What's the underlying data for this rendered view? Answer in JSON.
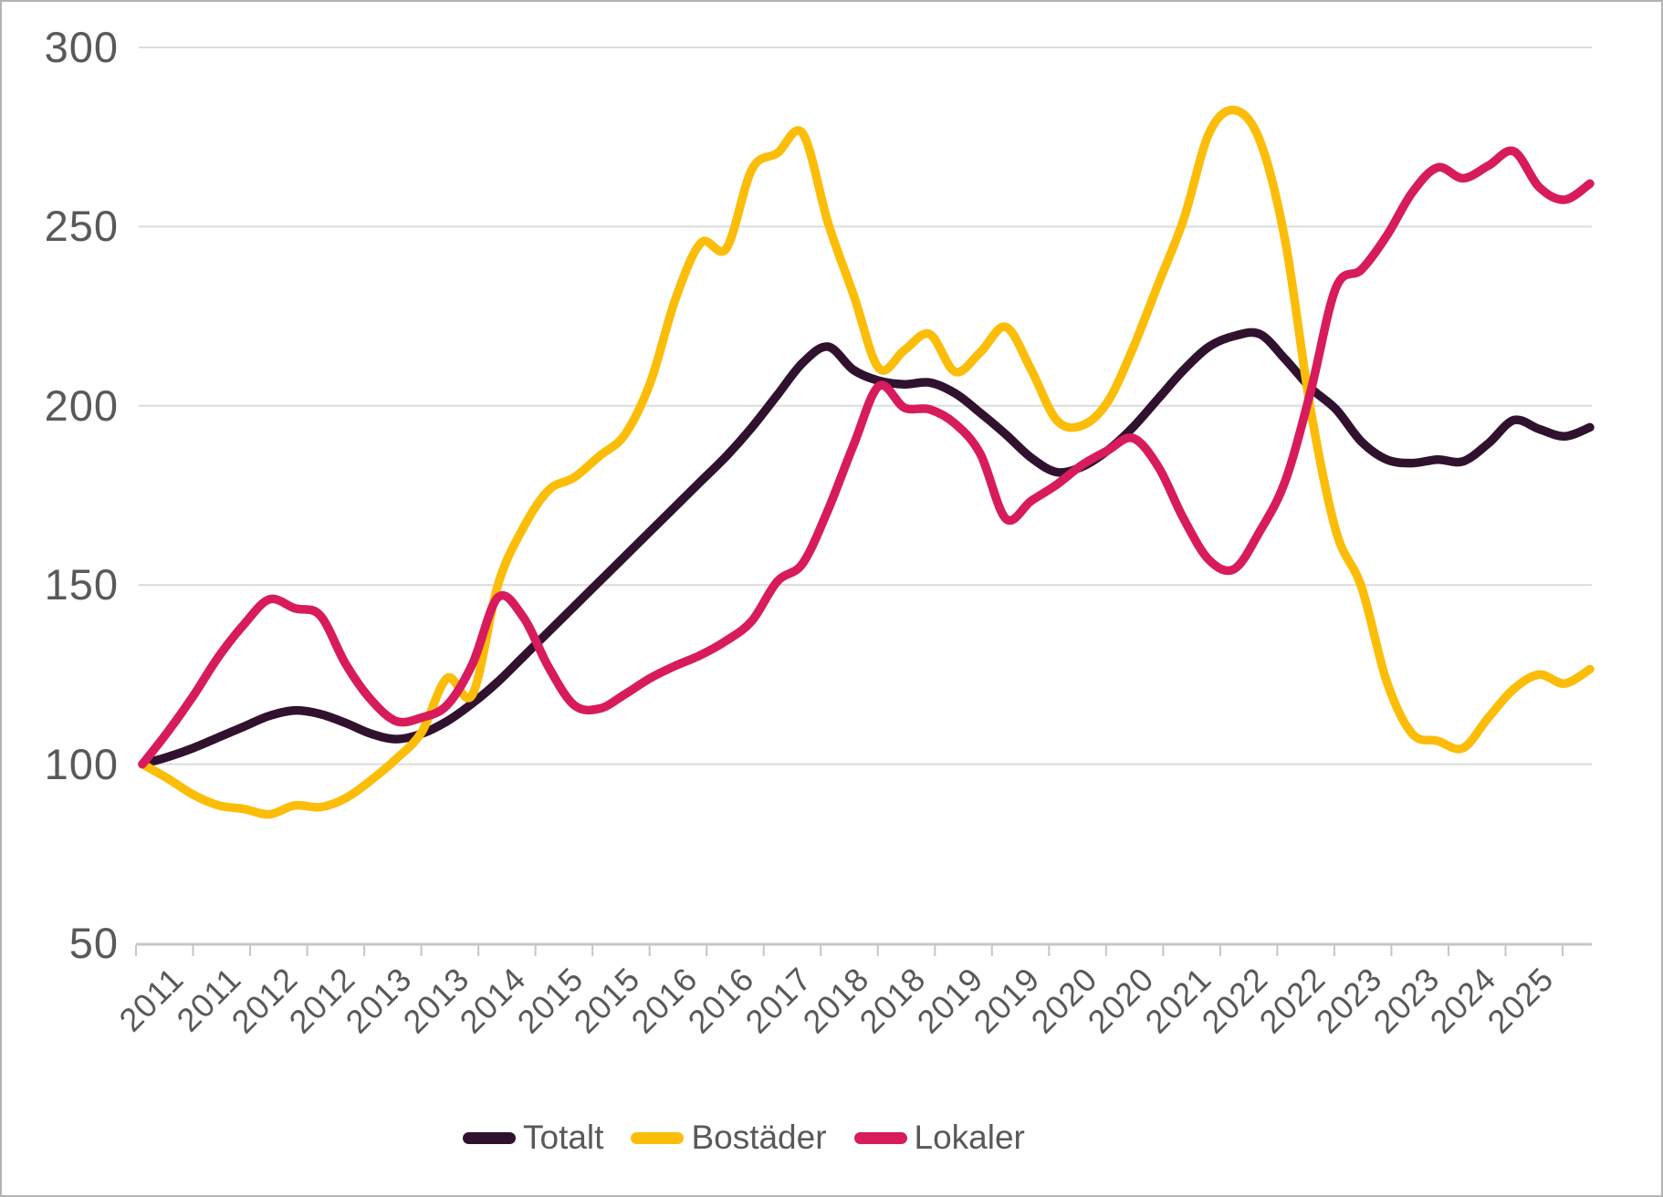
{
  "chart_data": {
    "type": "line",
    "title": "",
    "grid": "horizontal",
    "legend_position": "bottom",
    "y_axis": {
      "min": 50,
      "max": 300,
      "ticks": [
        300,
        250,
        200,
        150,
        100,
        50
      ]
    },
    "x_axis": {
      "tick_labels": [
        "2011",
        "2011",
        "2012",
        "2012",
        "2013",
        "2013",
        "2014",
        "2015",
        "2015",
        "2016",
        "2016",
        "2017",
        "2018",
        "2018",
        "2019",
        "2019",
        "2020",
        "2020",
        "2021",
        "2022",
        "2022",
        "2023",
        "2023",
        "2024",
        "2025"
      ]
    },
    "x": [
      "2011Q1",
      "2011Q2",
      "2011Q3",
      "2011Q4",
      "2012Q1",
      "2012Q2",
      "2012Q3",
      "2012Q4",
      "2013Q1",
      "2013Q2",
      "2013Q3",
      "2013Q4",
      "2014Q1",
      "2014Q2",
      "2014Q3",
      "2014Q4",
      "2015Q1",
      "2015Q2",
      "2015Q3",
      "2015Q4",
      "2016Q1",
      "2016Q2",
      "2016Q3",
      "2016Q4",
      "2017Q1",
      "2017Q2",
      "2017Q3",
      "2017Q4",
      "2018Q1",
      "2018Q2",
      "2018Q3",
      "2018Q4",
      "2019Q1",
      "2019Q2",
      "2019Q3",
      "2019Q4",
      "2020Q1",
      "2020Q2",
      "2020Q3",
      "2020Q4",
      "2021Q1",
      "2021Q2",
      "2021Q3",
      "2021Q4",
      "2022Q1",
      "2022Q2",
      "2022Q3",
      "2022Q4",
      "2023Q1",
      "2023Q2",
      "2023Q3",
      "2023Q4",
      "2024Q1",
      "2024Q2",
      "2024Q3",
      "2024Q4",
      "2025Q1",
      "2025Q2"
    ],
    "series": [
      {
        "name": "Totalt",
        "color": "#31122e",
        "values": [
          100,
          102,
          104.5,
          107.5,
          110.5,
          113.5,
          115,
          114,
          111.5,
          108.5,
          107,
          108.5,
          112,
          117,
          123,
          130,
          137,
          144,
          151,
          158,
          165,
          172,
          179,
          186,
          194,
          203,
          212,
          216.5,
          210,
          207,
          206,
          206.5,
          203.5,
          198,
          192,
          185.5,
          181.5,
          183,
          187.5,
          194,
          202,
          210,
          216.5,
          219.5,
          220,
          213,
          205,
          199,
          190,
          185,
          184,
          185,
          184.5,
          189.5,
          196,
          193.5,
          191.5,
          194
        ]
      },
      {
        "name": "Bostäder",
        "color": "#fcbd09",
        "values": [
          100,
          96,
          91.5,
          88.5,
          87.5,
          86,
          88.5,
          88,
          90.5,
          95.5,
          101.5,
          109,
          124,
          119.5,
          150,
          166,
          176.5,
          180,
          186,
          192,
          206.5,
          230,
          245.5,
          244,
          266,
          270.5,
          276,
          251,
          231,
          210.5,
          215.5,
          220,
          209.5,
          215,
          222,
          210,
          196,
          194.5,
          201,
          216,
          234,
          252,
          276,
          282.5,
          274,
          246,
          199,
          165,
          149.5,
          123,
          108.5,
          106.5,
          104.5,
          113,
          121,
          125,
          122.5,
          126.5
        ]
      },
      {
        "name": "Lokaler",
        "color": "#d81b5d",
        "values": [
          100,
          109,
          119,
          130,
          139,
          146,
          143.5,
          141.5,
          128,
          118,
          112,
          113,
          116.5,
          128,
          146.5,
          141,
          127,
          116.5,
          115.5,
          119.5,
          124,
          127.5,
          130.5,
          134.5,
          140,
          151,
          156,
          171,
          189,
          205.5,
          199.5,
          199,
          195,
          186.5,
          168.5,
          173.5,
          178,
          183.5,
          187.5,
          191,
          183,
          168.5,
          157,
          154.5,
          165,
          179,
          204,
          233,
          238,
          247.5,
          259.5,
          266.5,
          263.5,
          267,
          271,
          261,
          257.5,
          262
        ]
      }
    ]
  },
  "colors": {
    "grid": "#dcdcdc",
    "axis": "#c6c6c6",
    "text": "#58595b",
    "background": "#ffffff"
  }
}
